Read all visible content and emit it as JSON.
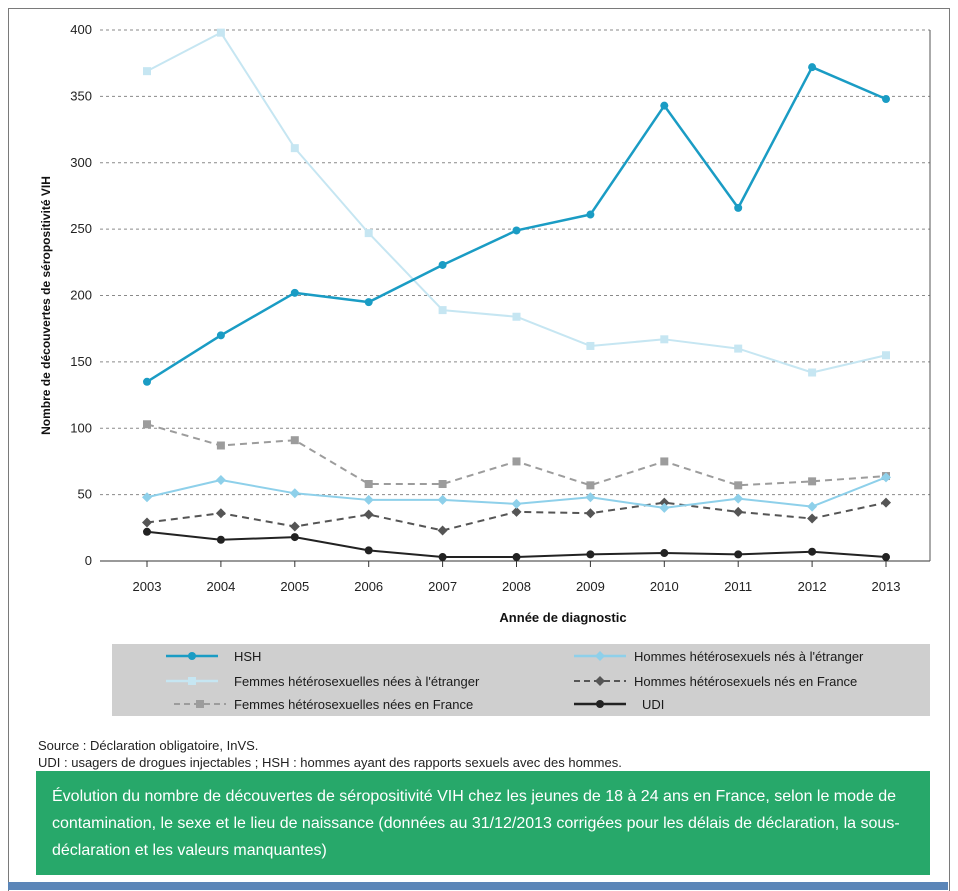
{
  "chart_data": {
    "type": "line",
    "xlabel": "Année de diagnostic",
    "ylabel": "Nombre de découvertes de séropositivité VIH",
    "x": [
      "2003",
      "2004",
      "2005",
      "2006",
      "2007",
      "2008",
      "2009",
      "2010",
      "2011",
      "2012",
      "2013"
    ],
    "ylim": [
      0,
      400
    ],
    "yticks": [
      0,
      50,
      100,
      150,
      200,
      250,
      300,
      350,
      400
    ],
    "grid": true,
    "legend_position": "bottom",
    "series": [
      {
        "name": "HSH",
        "color": "#1a9cc4",
        "dash": "solid",
        "marker": "circle",
        "values": [
          135,
          170,
          202,
          195,
          223,
          249,
          261,
          343,
          266,
          372,
          348
        ]
      },
      {
        "name": "Femmes hétérosexuelles nées à l'étranger",
        "color": "#c6e6f2",
        "dash": "solid",
        "marker": "square",
        "values": [
          369,
          398,
          311,
          247,
          189,
          184,
          162,
          167,
          160,
          142,
          155
        ]
      },
      {
        "name": "Femmes hétérosexuelles nées en France",
        "color": "#9c9c9c",
        "dash": "dashed",
        "marker": "square",
        "values": [
          103,
          87,
          91,
          58,
          58,
          75,
          57,
          75,
          57,
          60,
          64
        ]
      },
      {
        "name": "Hommes hétérosexuels nés à l'étranger",
        "color": "#8ed0ea",
        "dash": "solid",
        "marker": "diamond",
        "values": [
          48,
          61,
          51,
          46,
          46,
          43,
          48,
          40,
          47,
          41,
          63
        ]
      },
      {
        "name": "Hommes hétérosexuels nés en France",
        "color": "#555555",
        "dash": "dashed",
        "marker": "diamond",
        "values": [
          29,
          36,
          26,
          35,
          23,
          37,
          36,
          44,
          37,
          32,
          44
        ]
      },
      {
        "name": "UDI",
        "color": "#222222",
        "dash": "solid",
        "marker": "circle",
        "values": [
          22,
          16,
          18,
          8,
          3,
          3,
          5,
          6,
          5,
          7,
          3
        ]
      }
    ]
  },
  "source": {
    "line1": "Source : Déclaration obligatoire, InVS.",
    "line2": "UDI : usagers de drogues injectables ; HSH : hommes ayant des rapports sexuels avec des hommes."
  },
  "caption": "Évolution du nombre de découvertes de séropositivité VIH chez les jeunes de 18 à 24 ans en France, selon le mode de contamination, le sexe et le lieu de naissance (données au 31/12/2013 corrigées pour les délais de déclaration, la sous-déclaration et les valeurs manquantes)"
}
